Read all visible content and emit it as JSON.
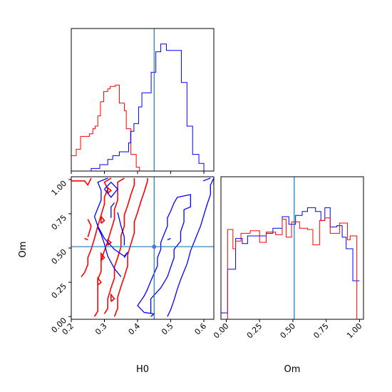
{
  "chart_data": {
    "type": "corner",
    "colors": {
      "series_a": "#0000ff",
      "series_b": "#ff0000",
      "truth": "#1f77b4"
    },
    "truth": {
      "H0": 0.45,
      "Om": 0.51
    },
    "labels": {
      "xlabel_left": "H0",
      "xlabel_right": "Om",
      "ylabel": "Om"
    },
    "ticks": {
      "H0": [
        "0.2",
        "0.3",
        "0.4",
        "0.5",
        "0.6"
      ],
      "Om": [
        "0.00",
        "0.25",
        "0.50",
        "0.75",
        "1.00"
      ]
    },
    "H0_hist": {
      "range": [
        0.2,
        0.63
      ],
      "blue_steps": [
        [
          0.242,
          0.0
        ],
        [
          0.26,
          0.02
        ],
        [
          0.286,
          0.05
        ],
        [
          0.31,
          0.09
        ],
        [
          0.325,
          0.12
        ],
        [
          0.345,
          0.15
        ],
        [
          0.373,
          0.22
        ],
        [
          0.379,
          0.31
        ],
        [
          0.389,
          0.37
        ],
        [
          0.403,
          0.5
        ],
        [
          0.413,
          0.61
        ],
        [
          0.427,
          0.61
        ],
        [
          0.441,
          0.77
        ],
        [
          0.455,
          0.93
        ],
        [
          0.47,
          0.99
        ],
        [
          0.487,
          0.94
        ],
        [
          0.506,
          0.94
        ],
        [
          0.532,
          0.69
        ],
        [
          0.549,
          0.35
        ],
        [
          0.566,
          0.13
        ],
        [
          0.585,
          0.06
        ],
        [
          0.6,
          0.0
        ]
      ],
      "red_steps": [
        [
          0.2,
          0.12
        ],
        [
          0.215,
          0.17
        ],
        [
          0.228,
          0.27
        ],
        [
          0.255,
          0.29
        ],
        [
          0.265,
          0.33
        ],
        [
          0.272,
          0.35
        ],
        [
          0.28,
          0.43
        ],
        [
          0.288,
          0.54
        ],
        [
          0.298,
          0.62
        ],
        [
          0.31,
          0.64
        ],
        [
          0.317,
          0.66
        ],
        [
          0.333,
          0.67
        ],
        [
          0.345,
          0.53
        ],
        [
          0.36,
          0.47
        ],
        [
          0.366,
          0.33
        ],
        [
          0.38,
          0.13
        ],
        [
          0.396,
          0.03
        ],
        [
          0.406,
          0.0
        ]
      ]
    },
    "Om_hist": {
      "range": [
        -0.04,
        1.03
      ],
      "blue_steps": [
        [
          -0.04,
          0.05
        ],
        [
          0.01,
          0.39
        ],
        [
          0.05,
          0.39
        ],
        [
          0.07,
          0.63
        ],
        [
          0.12,
          0.59
        ],
        [
          0.16,
          0.65
        ],
        [
          0.21,
          0.65
        ],
        [
          0.3,
          0.67
        ],
        [
          0.35,
          0.71
        ],
        [
          0.42,
          0.8
        ],
        [
          0.47,
          0.74
        ],
        [
          0.52,
          0.81
        ],
        [
          0.57,
          0.84
        ],
        [
          0.61,
          0.87
        ],
        [
          0.67,
          0.84
        ],
        [
          0.71,
          0.77
        ],
        [
          0.74,
          0.87
        ],
        [
          0.78,
          0.72
        ],
        [
          0.83,
          0.73
        ],
        [
          0.87,
          0.64
        ],
        [
          0.9,
          0.55
        ],
        [
          0.95,
          0.3
        ],
        [
          0.98,
          0.3
        ]
      ],
      "red_steps": [
        [
          0.01,
          0.7
        ],
        [
          0.05,
          0.55
        ],
        [
          0.07,
          0.61
        ],
        [
          0.11,
          0.67
        ],
        [
          0.18,
          0.69
        ],
        [
          0.25,
          0.6
        ],
        [
          0.3,
          0.68
        ],
        [
          0.37,
          0.66
        ],
        [
          0.42,
          0.78
        ],
        [
          0.45,
          0.64
        ],
        [
          0.49,
          0.76
        ],
        [
          0.55,
          0.71
        ],
        [
          0.61,
          0.7
        ],
        [
          0.65,
          0.58
        ],
        [
          0.7,
          0.77
        ],
        [
          0.74,
          0.79
        ],
        [
          0.78,
          0.67
        ],
        [
          0.85,
          0.75
        ],
        [
          0.91,
          0.62
        ],
        [
          0.93,
          0.65
        ],
        [
          0.98,
          0.0
        ]
      ]
    },
    "contours": {
      "blue": [
        [
          [
            0.36,
            0.43
          ],
          [
            0.37,
            0.47
          ],
          [
            0.36,
            0.44
          ],
          [
            0.33,
            0.49
          ],
          [
            0.3,
            0.57
          ],
          [
            0.28,
            0.66
          ],
          [
            0.27,
            0.73
          ],
          [
            0.28,
            0.79
          ],
          [
            0.29,
            0.85
          ],
          [
            0.29,
            0.92
          ],
          [
            0.28,
            0.98
          ],
          [
            0.31,
            1.01
          ]
        ],
        [
          [
            0.3,
            0.93
          ],
          [
            0.32,
            0.98
          ],
          [
            0.34,
            0.93
          ],
          [
            0.32,
            0.87
          ],
          [
            0.3,
            0.93
          ]
        ],
        [
          [
            0.36,
            0.52
          ],
          [
            0.36,
            0.58
          ],
          [
            0.35,
            0.66
          ],
          [
            0.34,
            0.76
          ]
        ],
        [
          [
            0.32,
            0.72
          ],
          [
            0.32,
            0.76
          ],
          [
            0.32,
            0.8
          ],
          [
            0.33,
            0.83
          ]
        ],
        [
          [
            0.35,
            0.29
          ],
          [
            0.33,
            0.35
          ],
          [
            0.31,
            0.44
          ],
          [
            0.3,
            0.53
          ],
          [
            0.29,
            0.6
          ],
          [
            0.28,
            0.65
          ]
        ],
        [
          [
            0.44,
            0.0
          ],
          [
            0.45,
            0.02
          ],
          [
            0.42,
            0.03
          ],
          [
            0.4,
            0.08
          ],
          [
            0.42,
            0.15
          ],
          [
            0.43,
            0.2
          ],
          [
            0.44,
            0.26
          ],
          [
            0.46,
            0.37
          ],
          [
            0.46,
            0.43
          ],
          [
            0.47,
            0.49
          ],
          [
            0.47,
            0.54
          ],
          [
            0.48,
            0.6
          ],
          [
            0.49,
            0.66
          ],
          [
            0.49,
            0.72
          ],
          [
            0.5,
            0.77
          ],
          [
            0.51,
            0.83
          ],
          [
            0.52,
            0.87
          ],
          [
            0.54,
            0.88
          ],
          [
            0.56,
            0.89
          ],
          [
            0.56,
            0.85
          ],
          [
            0.56,
            0.8
          ],
          [
            0.54,
            0.78
          ],
          [
            0.54,
            0.69
          ],
          [
            0.53,
            0.62
          ],
          [
            0.53,
            0.55
          ],
          [
            0.51,
            0.49
          ],
          [
            0.51,
            0.43
          ],
          [
            0.5,
            0.36
          ],
          [
            0.49,
            0.29
          ],
          [
            0.47,
            0.21
          ],
          [
            0.44,
            0.13
          ],
          [
            0.44,
            0.02
          ]
        ],
        [
          [
            0.49,
            0.0
          ],
          [
            0.5,
            0.05
          ],
          [
            0.51,
            0.12
          ],
          [
            0.52,
            0.2
          ],
          [
            0.53,
            0.27
          ],
          [
            0.55,
            0.39
          ],
          [
            0.56,
            0.48
          ],
          [
            0.57,
            0.54
          ],
          [
            0.58,
            0.6
          ],
          [
            0.59,
            0.66
          ],
          [
            0.6,
            0.74
          ],
          [
            0.61,
            0.82
          ],
          [
            0.62,
            0.89
          ],
          [
            0.62,
            0.96
          ],
          [
            0.63,
            1.01
          ],
          [
            0.63,
            0.96
          ]
        ],
        [
          [
            0.598,
            0.99
          ],
          [
            0.62,
            1.01
          ]
        ],
        [
          [
            0.49,
            0.56
          ],
          [
            0.5,
            0.57
          ]
        ]
      ],
      "red": [
        [
          [
            0.2,
            0.99
          ],
          [
            0.23,
            0.99
          ],
          [
            0.24,
            0.99
          ],
          [
            0.25,
            0.96
          ],
          [
            0.26,
            1.01
          ]
        ],
        [
          [
            0.25,
            0.71
          ],
          [
            0.26,
            0.66
          ],
          [
            0.25,
            0.58
          ]
        ],
        [
          [
            0.24,
            0.57
          ],
          [
            0.25,
            0.56
          ]
        ],
        [
          [
            0.23,
            0.29
          ],
          [
            0.24,
            0.32
          ],
          [
            0.25,
            0.38
          ],
          [
            0.25,
            0.43
          ],
          [
            0.26,
            0.49
          ],
          [
            0.27,
            0.57
          ],
          [
            0.28,
            0.66
          ],
          [
            0.29,
            0.74
          ],
          [
            0.3,
            0.82
          ],
          [
            0.3,
            0.87
          ],
          [
            0.31,
            0.93
          ],
          [
            0.3,
            0.98
          ],
          [
            0.32,
            1.01
          ]
        ],
        [
          [
            0.27,
            0.0
          ],
          [
            0.28,
            0.04
          ],
          [
            0.28,
            0.11
          ],
          [
            0.28,
            0.19
          ],
          [
            0.28,
            0.27
          ],
          [
            0.29,
            0.33
          ],
          [
            0.29,
            0.41
          ],
          [
            0.3,
            0.48
          ],
          [
            0.31,
            0.55
          ],
          [
            0.32,
            0.63
          ],
          [
            0.33,
            0.71
          ],
          [
            0.33,
            0.78
          ],
          [
            0.34,
            0.85
          ],
          [
            0.34,
            0.92
          ],
          [
            0.34,
            0.98
          ],
          [
            0.36,
            1.01
          ]
        ],
        [
          [
            0.3,
            0.02
          ],
          [
            0.31,
            0.06
          ],
          [
            0.31,
            0.13
          ],
          [
            0.32,
            0.21
          ],
          [
            0.33,
            0.28
          ],
          [
            0.33,
            0.36
          ],
          [
            0.34,
            0.43
          ],
          [
            0.35,
            0.51
          ],
          [
            0.35,
            0.59
          ],
          [
            0.36,
            0.66
          ],
          [
            0.36,
            0.74
          ],
          [
            0.37,
            0.81
          ],
          [
            0.38,
            0.89
          ],
          [
            0.39,
            0.96
          ],
          [
            0.39,
            1.01
          ]
        ],
        [
          [
            0.33,
            0.0
          ],
          [
            0.34,
            0.06
          ],
          [
            0.34,
            0.14
          ],
          [
            0.35,
            0.22
          ],
          [
            0.36,
            0.29
          ],
          [
            0.37,
            0.37
          ],
          [
            0.37,
            0.45
          ],
          [
            0.38,
            0.53
          ],
          [
            0.39,
            0.61
          ],
          [
            0.39,
            0.69
          ],
          [
            0.4,
            0.76
          ],
          [
            0.41,
            0.84
          ],
          [
            0.42,
            0.91
          ],
          [
            0.43,
            0.99
          ],
          [
            0.43,
            1.01
          ]
        ],
        [
          [
            0.28,
            0.23
          ],
          [
            0.28,
            0.28
          ],
          [
            0.29,
            0.25
          ],
          [
            0.28,
            0.23
          ]
        ],
        [
          [
            0.29,
            0.41
          ],
          [
            0.29,
            0.46
          ],
          [
            0.3,
            0.43
          ],
          [
            0.29,
            0.41
          ]
        ],
        [
          [
            0.29,
            0.68
          ],
          [
            0.29,
            0.73
          ],
          [
            0.3,
            0.7
          ],
          [
            0.29,
            0.68
          ]
        ],
        [
          [
            0.31,
            0.9
          ],
          [
            0.31,
            0.94
          ],
          [
            0.32,
            0.92
          ],
          [
            0.31,
            0.9
          ]
        ],
        [
          [
            0.32,
            0.11
          ],
          [
            0.32,
            0.16
          ],
          [
            0.33,
            0.13
          ],
          [
            0.32,
            0.11
          ]
        ],
        [
          [
            0.31,
            0.52
          ],
          [
            0.31,
            0.56
          ],
          [
            0.32,
            0.54
          ],
          [
            0.31,
            0.52
          ]
        ]
      ],
      "blue_marks": [
        [
          0.45,
          0.51
        ]
      ]
    }
  }
}
